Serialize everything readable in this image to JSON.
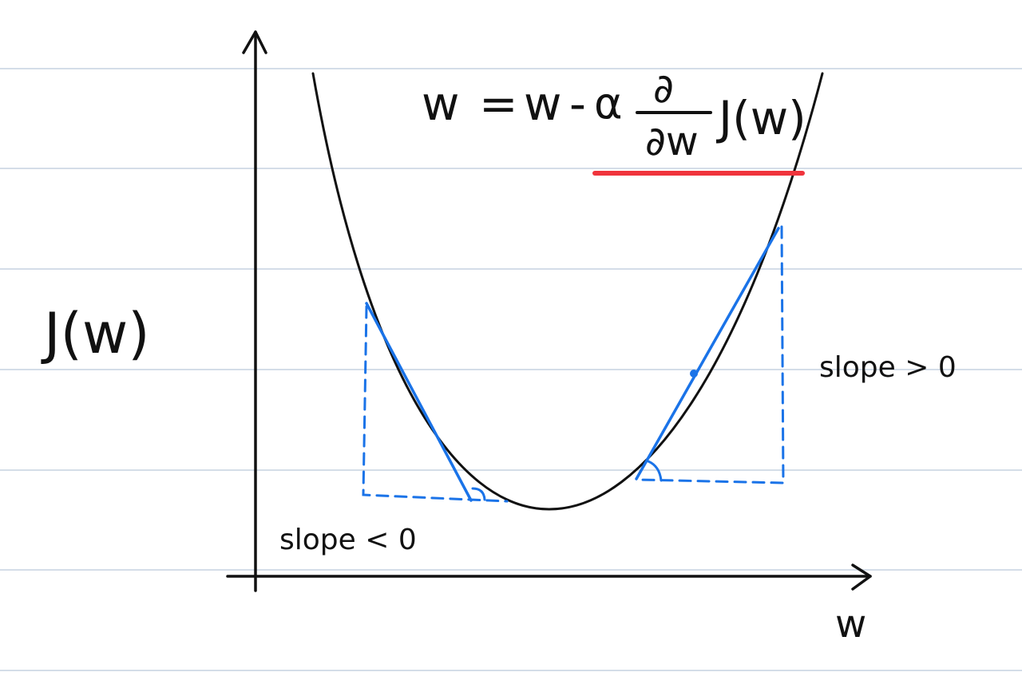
{
  "diagram": {
    "formula": {
      "lhs": "w",
      "equals": "=",
      "rhs_w": "w",
      "minus": "-",
      "alpha": "α",
      "partial_top": "∂",
      "partial_bottom": "∂w",
      "function": "J(w)"
    },
    "y_axis_label": "J(w)",
    "x_axis_label": "w",
    "annotation_positive": "slope > 0",
    "annotation_negative": "slope < 0",
    "colors": {
      "background": "#ffffff",
      "ruled_lines": "#c6d2e0",
      "ink": "#111111",
      "tangent": "#1a73e8",
      "highlight": "#f0343c"
    }
  }
}
